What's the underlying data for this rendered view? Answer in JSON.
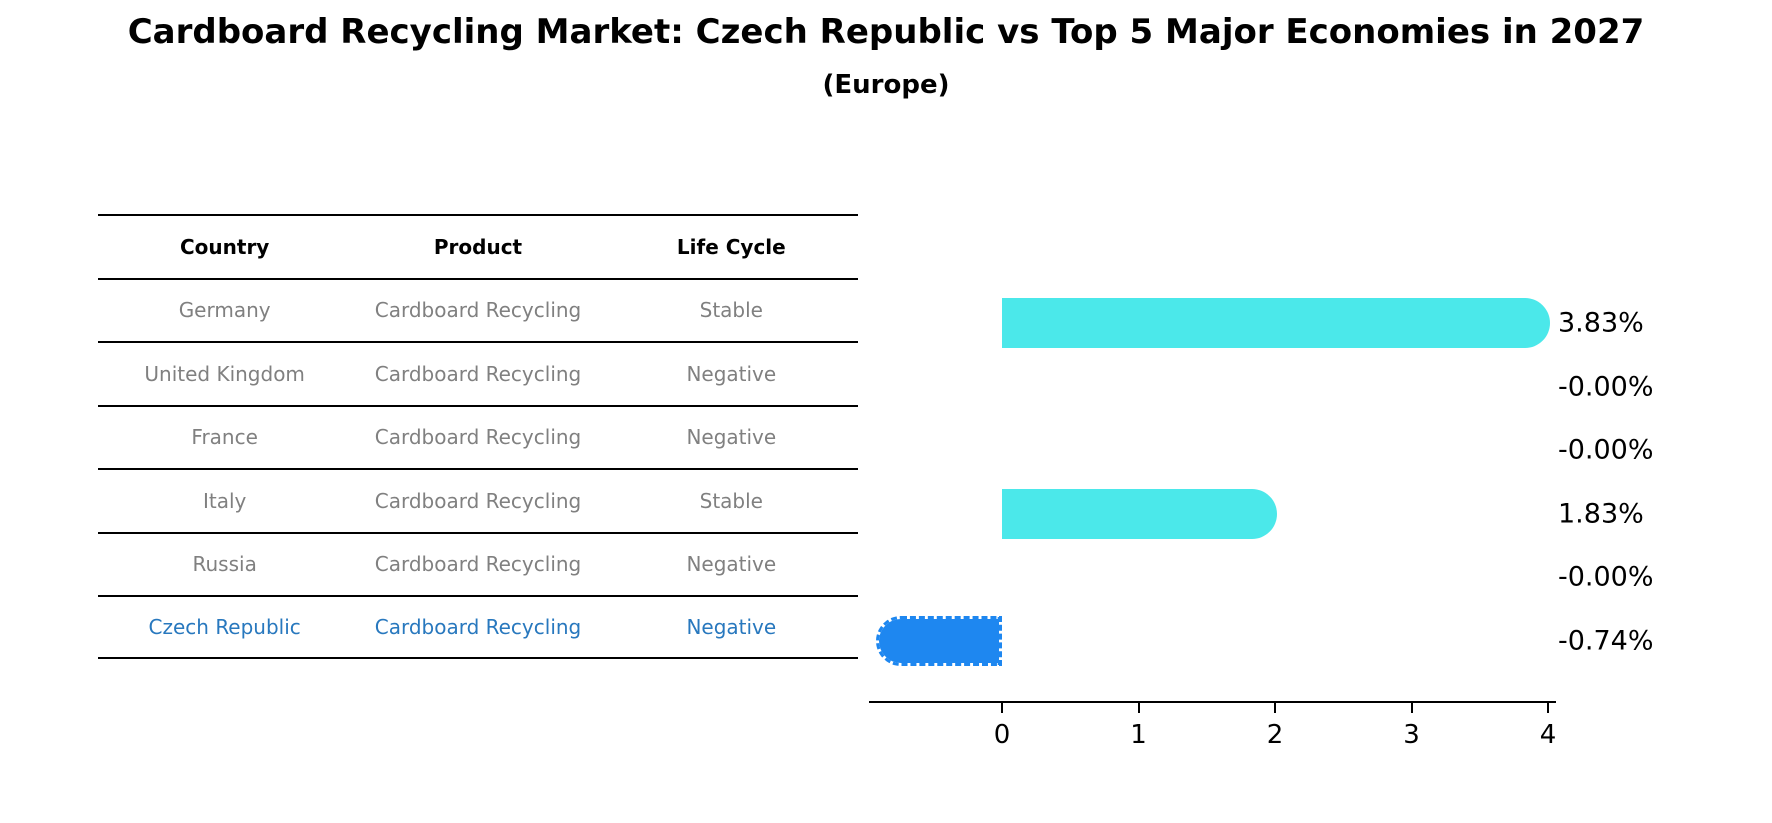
{
  "title": "Cardboard Recycling Market: Czech Republic vs Top 5 Major Economies in 2027",
  "subtitle": "(Europe)",
  "table": {
    "headers": [
      "Country",
      "Product",
      "Life Cycle"
    ],
    "rows": [
      {
        "country": "Germany",
        "product": "Cardboard Recycling",
        "life_cycle": "Stable",
        "highlighted": false
      },
      {
        "country": "United Kingdom",
        "product": "Cardboard Recycling",
        "life_cycle": "Negative",
        "highlighted": false
      },
      {
        "country": "France",
        "product": "Cardboard Recycling",
        "life_cycle": "Negative",
        "highlighted": false
      },
      {
        "country": "Italy",
        "product": "Cardboard Recycling",
        "life_cycle": "Stable",
        "highlighted": false
      },
      {
        "country": "Russia",
        "product": "Cardboard Recycling",
        "life_cycle": "Negative",
        "highlighted": false
      },
      {
        "country": "Czech Republic",
        "product": "Cardboard Recycling",
        "life_cycle": "Negative",
        "highlighted": true
      }
    ]
  },
  "chart_data": {
    "type": "bar",
    "orientation": "horizontal",
    "title": "Cardboard Recycling Market: Czech Republic vs Top 5 Major Economies in 2027",
    "subtitle": "(Europe)",
    "categories": [
      "Germany",
      "United Kingdom",
      "France",
      "Italy",
      "Russia",
      "Czech Republic"
    ],
    "values": [
      3.83,
      -0.0,
      -0.0,
      1.83,
      -0.0,
      -0.74
    ],
    "value_labels": [
      "3.83%",
      "-0.00%",
      "-0.00%",
      "1.83%",
      "-0.00%",
      "-0.74%"
    ],
    "x_tick_labels": [
      "0",
      "1",
      "2",
      "3",
      "4"
    ],
    "x_tick_values": [
      0,
      1,
      2,
      3,
      4
    ],
    "xlim": [
      -0.97,
      4.06
    ],
    "grid": false,
    "legend": false,
    "bar_style": "rounded-cap",
    "colors": {
      "positive_bar": "#4BE8EA",
      "highlight_bar": "#1E87F0",
      "highlight_text": "#2878BE",
      "muted_text": "#808080",
      "axis": "#000000"
    }
  }
}
